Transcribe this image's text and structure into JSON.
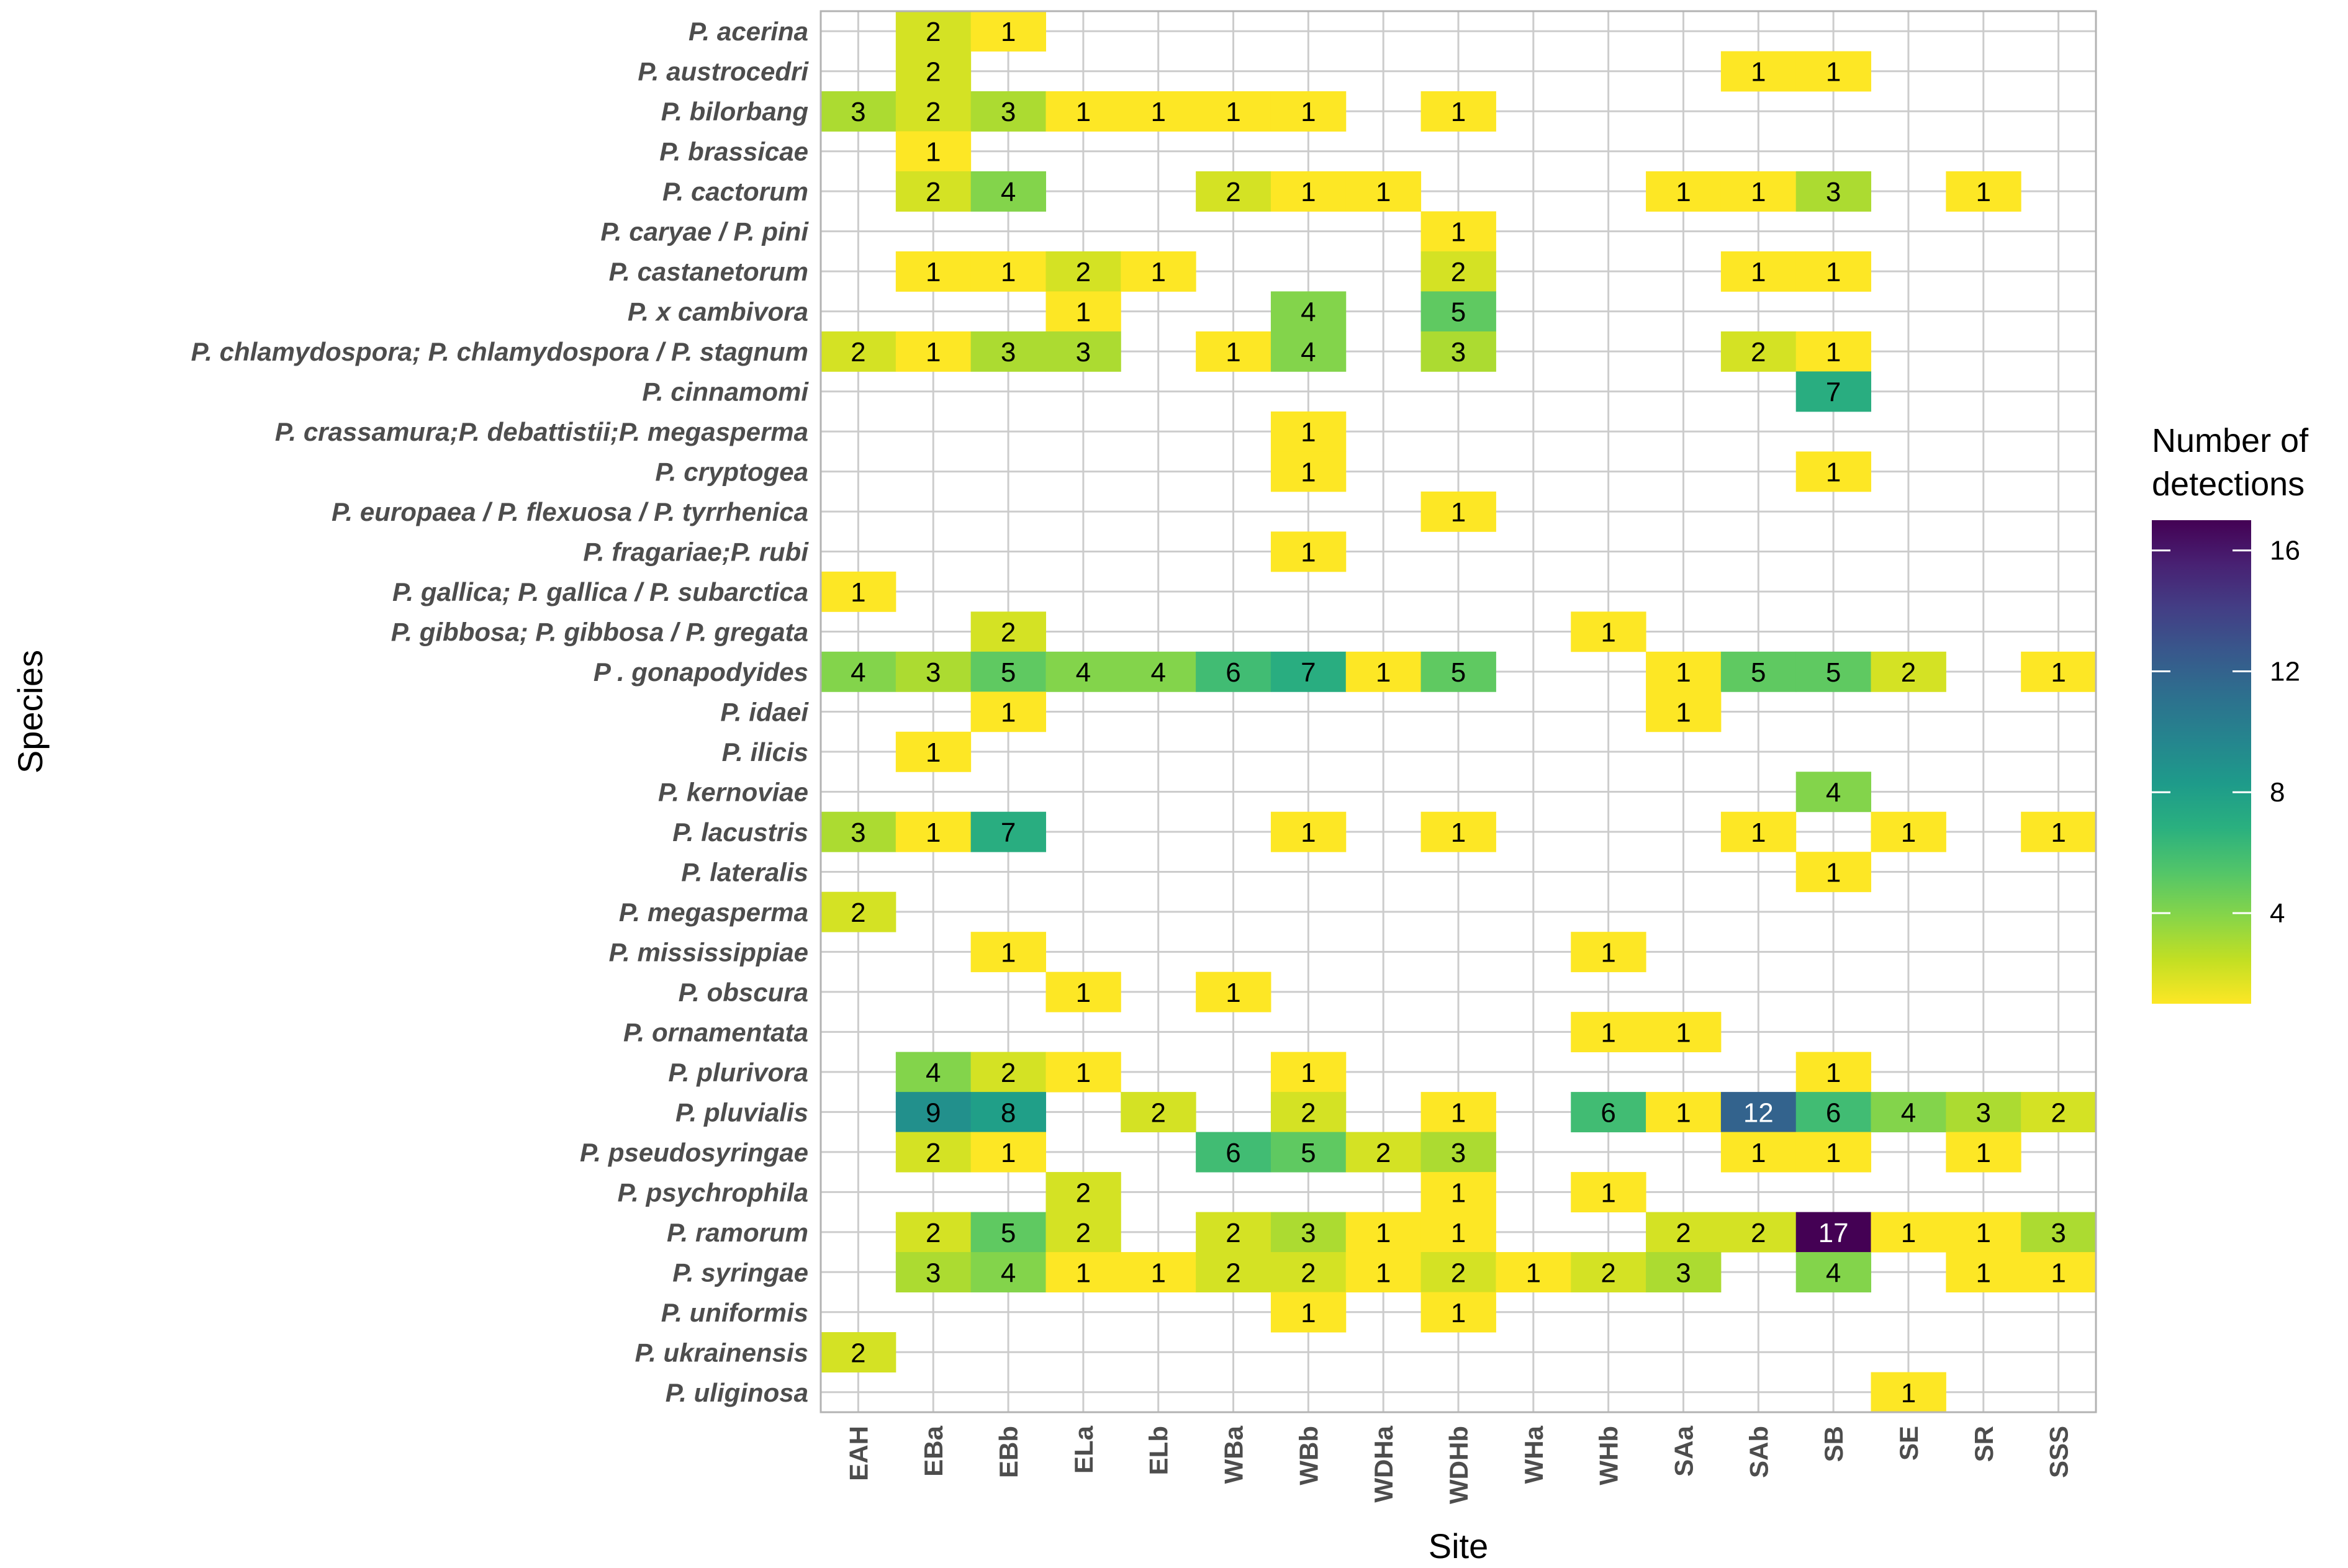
{
  "chart_data": {
    "type": "heatmap",
    "xlabel": "Site",
    "ylabel": "Species",
    "sites": [
      "EAH",
      "EBa",
      "EBb",
      "ELa",
      "ELb",
      "WBa",
      "WBb",
      "WDHa",
      "WDHb",
      "WHa",
      "WHb",
      "SAa",
      "SAb",
      "SB",
      "SE",
      "SR",
      "SSS"
    ],
    "species": [
      "P. acerina",
      "P. austrocedri",
      "P. bilorbang",
      "P. brassicae",
      "P. cactorum",
      "P. caryae / P. pini",
      "P. castanetorum",
      "P. x cambivora",
      "P. chlamydospora; P. chlamydospora / P. stagnum",
      "P. cinnamomi",
      "P. crassamura;P. debattistii;P. megasperma",
      "P. cryptogea",
      "P. europaea / P. flexuosa / P. tyrrhenica",
      "P. fragariae;P. rubi",
      "P. gallica; P. gallica / P. subarctica",
      "P. gibbosa; P. gibbosa / P. gregata",
      "P . gonapodyides",
      "P. idaei",
      "P. ilicis",
      "P. kernoviae",
      "P. lacustris",
      "P. lateralis",
      "P. megasperma",
      "P. mississippiae",
      "P. obscura",
      "P. ornamentata",
      "P. plurivora",
      "P. pluvialis",
      "P. pseudosyringae",
      "P. psychrophila",
      "P. ramorum",
      "P. syringae",
      "P. uniformis",
      "P. ukrainensis",
      "P. uliginosa"
    ],
    "cells": [
      {
        "species": "P. acerina",
        "site": "EBa",
        "value": 2
      },
      {
        "species": "P. acerina",
        "site": "EBb",
        "value": 1
      },
      {
        "species": "P. austrocedri",
        "site": "EBa",
        "value": 2
      },
      {
        "species": "P. austrocedri",
        "site": "SAb",
        "value": 1
      },
      {
        "species": "P. austrocedri",
        "site": "SB",
        "value": 1
      },
      {
        "species": "P. bilorbang",
        "site": "EAH",
        "value": 3
      },
      {
        "species": "P. bilorbang",
        "site": "EBa",
        "value": 2
      },
      {
        "species": "P. bilorbang",
        "site": "EBb",
        "value": 3
      },
      {
        "species": "P. bilorbang",
        "site": "ELa",
        "value": 1
      },
      {
        "species": "P. bilorbang",
        "site": "ELb",
        "value": 1
      },
      {
        "species": "P. bilorbang",
        "site": "WBa",
        "value": 1
      },
      {
        "species": "P. bilorbang",
        "site": "WBb",
        "value": 1
      },
      {
        "species": "P. bilorbang",
        "site": "WDHb",
        "value": 1
      },
      {
        "species": "P. brassicae",
        "site": "EBa",
        "value": 1
      },
      {
        "species": "P. cactorum",
        "site": "EBa",
        "value": 2
      },
      {
        "species": "P. cactorum",
        "site": "EBb",
        "value": 4
      },
      {
        "species": "P. cactorum",
        "site": "WBa",
        "value": 2
      },
      {
        "species": "P. cactorum",
        "site": "WBb",
        "value": 1
      },
      {
        "species": "P. cactorum",
        "site": "WDHa",
        "value": 1
      },
      {
        "species": "P. cactorum",
        "site": "SAa",
        "value": 1
      },
      {
        "species": "P. cactorum",
        "site": "SAb",
        "value": 1
      },
      {
        "species": "P. cactorum",
        "site": "SB",
        "value": 3
      },
      {
        "species": "P. cactorum",
        "site": "SR",
        "value": 1
      },
      {
        "species": "P. caryae / P. pini",
        "site": "WDHb",
        "value": 1
      },
      {
        "species": "P. castanetorum",
        "site": "EBa",
        "value": 1
      },
      {
        "species": "P. castanetorum",
        "site": "EBb",
        "value": 1
      },
      {
        "species": "P. castanetorum",
        "site": "ELa",
        "value": 2
      },
      {
        "species": "P. castanetorum",
        "site": "ELb",
        "value": 1
      },
      {
        "species": "P. castanetorum",
        "site": "WDHb",
        "value": 2
      },
      {
        "species": "P. castanetorum",
        "site": "SAb",
        "value": 1
      },
      {
        "species": "P. castanetorum",
        "site": "SB",
        "value": 1
      },
      {
        "species": "P. x cambivora",
        "site": "ELa",
        "value": 1
      },
      {
        "species": "P. x cambivora",
        "site": "WBb",
        "value": 4
      },
      {
        "species": "P. x cambivora",
        "site": "WDHb",
        "value": 5
      },
      {
        "species": "P. chlamydospora; P. chlamydospora / P. stagnum",
        "site": "EAH",
        "value": 2
      },
      {
        "species": "P. chlamydospora; P. chlamydospora / P. stagnum",
        "site": "EBa",
        "value": 1
      },
      {
        "species": "P. chlamydospora; P. chlamydospora / P. stagnum",
        "site": "EBb",
        "value": 3
      },
      {
        "species": "P. chlamydospora; P. chlamydospora / P. stagnum",
        "site": "ELa",
        "value": 3
      },
      {
        "species": "P. chlamydospora; P. chlamydospora / P. stagnum",
        "site": "WBa",
        "value": 1
      },
      {
        "species": "P. chlamydospora; P. chlamydospora / P. stagnum",
        "site": "WBb",
        "value": 4
      },
      {
        "species": "P. chlamydospora; P. chlamydospora / P. stagnum",
        "site": "WDHb",
        "value": 3
      },
      {
        "species": "P. chlamydospora; P. chlamydospora / P. stagnum",
        "site": "SAb",
        "value": 2
      },
      {
        "species": "P. chlamydospora; P. chlamydospora / P. stagnum",
        "site": "SB",
        "value": 1
      },
      {
        "species": "P. cinnamomi",
        "site": "SB",
        "value": 7
      },
      {
        "species": "P. crassamura;P. debattistii;P. megasperma",
        "site": "WBb",
        "value": 1
      },
      {
        "species": "P. cryptogea",
        "site": "WBb",
        "value": 1
      },
      {
        "species": "P. cryptogea",
        "site": "SB",
        "value": 1
      },
      {
        "species": "P. europaea / P. flexuosa / P. tyrrhenica",
        "site": "WDHb",
        "value": 1
      },
      {
        "species": "P. fragariae;P. rubi",
        "site": "WBb",
        "value": 1
      },
      {
        "species": "P. gallica; P. gallica / P. subarctica",
        "site": "EAH",
        "value": 1
      },
      {
        "species": "P. gibbosa; P. gibbosa / P. gregata",
        "site": "EBb",
        "value": 2
      },
      {
        "species": "P. gibbosa; P. gibbosa / P. gregata",
        "site": "WHb",
        "value": 1
      },
      {
        "species": "P . gonapodyides",
        "site": "EAH",
        "value": 4
      },
      {
        "species": "P . gonapodyides",
        "site": "EBa",
        "value": 3
      },
      {
        "species": "P . gonapodyides",
        "site": "EBb",
        "value": 5
      },
      {
        "species": "P . gonapodyides",
        "site": "ELa",
        "value": 4
      },
      {
        "species": "P . gonapodyides",
        "site": "ELb",
        "value": 4
      },
      {
        "species": "P . gonapodyides",
        "site": "WBa",
        "value": 6
      },
      {
        "species": "P . gonapodyides",
        "site": "WBb",
        "value": 7
      },
      {
        "species": "P . gonapodyides",
        "site": "WDHa",
        "value": 1
      },
      {
        "species": "P . gonapodyides",
        "site": "WDHb",
        "value": 5
      },
      {
        "species": "P . gonapodyides",
        "site": "SAa",
        "value": 1
      },
      {
        "species": "P . gonapodyides",
        "site": "SAb",
        "value": 5
      },
      {
        "species": "P . gonapodyides",
        "site": "SB",
        "value": 5
      },
      {
        "species": "P . gonapodyides",
        "site": "SE",
        "value": 2
      },
      {
        "species": "P . gonapodyides",
        "site": "SSS",
        "value": 1
      },
      {
        "species": "P. idaei",
        "site": "EBb",
        "value": 1
      },
      {
        "species": "P. idaei",
        "site": "SAa",
        "value": 1
      },
      {
        "species": "P. ilicis",
        "site": "EBa",
        "value": 1
      },
      {
        "species": "P. kernoviae",
        "site": "SB",
        "value": 4
      },
      {
        "species": "P. lacustris",
        "site": "EAH",
        "value": 3
      },
      {
        "species": "P. lacustris",
        "site": "EBa",
        "value": 1
      },
      {
        "species": "P. lacustris",
        "site": "EBb",
        "value": 7
      },
      {
        "species": "P. lacustris",
        "site": "WBb",
        "value": 1
      },
      {
        "species": "P. lacustris",
        "site": "WDHb",
        "value": 1
      },
      {
        "species": "P. lacustris",
        "site": "SAb",
        "value": 1
      },
      {
        "species": "P. lacustris",
        "site": "SE",
        "value": 1
      },
      {
        "species": "P. lacustris",
        "site": "SSS",
        "value": 1
      },
      {
        "species": "P. lateralis",
        "site": "SB",
        "value": 1
      },
      {
        "species": "P. megasperma",
        "site": "EAH",
        "value": 2
      },
      {
        "species": "P. mississippiae",
        "site": "EBb",
        "value": 1
      },
      {
        "species": "P. mississippiae",
        "site": "WHb",
        "value": 1
      },
      {
        "species": "P. obscura",
        "site": "ELa",
        "value": 1
      },
      {
        "species": "P. obscura",
        "site": "WBa",
        "value": 1
      },
      {
        "species": "P. ornamentata",
        "site": "WHb",
        "value": 1
      },
      {
        "species": "P. ornamentata",
        "site": "SAa",
        "value": 1
      },
      {
        "species": "P. plurivora",
        "site": "EBa",
        "value": 4
      },
      {
        "species": "P. plurivora",
        "site": "EBb",
        "value": 2
      },
      {
        "species": "P. plurivora",
        "site": "ELa",
        "value": 1
      },
      {
        "species": "P. plurivora",
        "site": "WBb",
        "value": 1
      },
      {
        "species": "P. plurivora",
        "site": "SB",
        "value": 1
      },
      {
        "species": "P. pluvialis",
        "site": "EBa",
        "value": 9
      },
      {
        "species": "P. pluvialis",
        "site": "EBb",
        "value": 8
      },
      {
        "species": "P. pluvialis",
        "site": "ELb",
        "value": 2
      },
      {
        "species": "P. pluvialis",
        "site": "WBb",
        "value": 2
      },
      {
        "species": "P. pluvialis",
        "site": "WDHb",
        "value": 1
      },
      {
        "species": "P. pluvialis",
        "site": "WHb",
        "value": 6
      },
      {
        "species": "P. pluvialis",
        "site": "SAa",
        "value": 1
      },
      {
        "species": "P. pluvialis",
        "site": "SAb",
        "value": 12
      },
      {
        "species": "P. pluvialis",
        "site": "SB",
        "value": 6
      },
      {
        "species": "P. pluvialis",
        "site": "SE",
        "value": 4
      },
      {
        "species": "P. pluvialis",
        "site": "SR",
        "value": 3
      },
      {
        "species": "P. pluvialis",
        "site": "SSS",
        "value": 2
      },
      {
        "species": "P. pseudosyringae",
        "site": "EBa",
        "value": 2
      },
      {
        "species": "P. pseudosyringae",
        "site": "EBb",
        "value": 1
      },
      {
        "species": "P. pseudosyringae",
        "site": "WBa",
        "value": 6
      },
      {
        "species": "P. pseudosyringae",
        "site": "WBb",
        "value": 5
      },
      {
        "species": "P. pseudosyringae",
        "site": "WDHa",
        "value": 2
      },
      {
        "species": "P. pseudosyringae",
        "site": "WDHb",
        "value": 3
      },
      {
        "species": "P. pseudosyringae",
        "site": "SAb",
        "value": 1
      },
      {
        "species": "P. pseudosyringae",
        "site": "SB",
        "value": 1
      },
      {
        "species": "P. pseudosyringae",
        "site": "SR",
        "value": 1
      },
      {
        "species": "P. psychrophila",
        "site": "ELa",
        "value": 2
      },
      {
        "species": "P. psychrophila",
        "site": "WDHb",
        "value": 1
      },
      {
        "species": "P. psychrophila",
        "site": "WHb",
        "value": 1
      },
      {
        "species": "P. ramorum",
        "site": "EBa",
        "value": 2
      },
      {
        "species": "P. ramorum",
        "site": "EBb",
        "value": 5
      },
      {
        "species": "P. ramorum",
        "site": "ELa",
        "value": 2
      },
      {
        "species": "P. ramorum",
        "site": "WBa",
        "value": 2
      },
      {
        "species": "P. ramorum",
        "site": "WBb",
        "value": 3
      },
      {
        "species": "P. ramorum",
        "site": "WDHa",
        "value": 1
      },
      {
        "species": "P. ramorum",
        "site": "WDHb",
        "value": 1
      },
      {
        "species": "P. ramorum",
        "site": "SAa",
        "value": 2
      },
      {
        "species": "P. ramorum",
        "site": "SAb",
        "value": 2
      },
      {
        "species": "P. ramorum",
        "site": "SB",
        "value": 17
      },
      {
        "species": "P. ramorum",
        "site": "SE",
        "value": 1
      },
      {
        "species": "P. ramorum",
        "site": "SR",
        "value": 1
      },
      {
        "species": "P. ramorum",
        "site": "SSS",
        "value": 3
      },
      {
        "species": "P. syringae",
        "site": "EBa",
        "value": 3
      },
      {
        "species": "P. syringae",
        "site": "EBb",
        "value": 4
      },
      {
        "species": "P. syringae",
        "site": "ELa",
        "value": 1
      },
      {
        "species": "P. syringae",
        "site": "ELb",
        "value": 1
      },
      {
        "species": "P. syringae",
        "site": "WBa",
        "value": 2
      },
      {
        "species": "P. syringae",
        "site": "WBb",
        "value": 2
      },
      {
        "species": "P. syringae",
        "site": "WDHa",
        "value": 1
      },
      {
        "species": "P. syringae",
        "site": "WDHb",
        "value": 2
      },
      {
        "species": "P. syringae",
        "site": "WHa",
        "value": 1
      },
      {
        "species": "P. syringae",
        "site": "WHb",
        "value": 2
      },
      {
        "species": "P. syringae",
        "site": "SAa",
        "value": 3
      },
      {
        "species": "P. syringae",
        "site": "SB",
        "value": 4
      },
      {
        "species": "P. syringae",
        "site": "SR",
        "value": 1
      },
      {
        "species": "P. syringae",
        "site": "SSS",
        "value": 1
      },
      {
        "species": "P. uniformis",
        "site": "WBb",
        "value": 1
      },
      {
        "species": "P. uniformis",
        "site": "WDHb",
        "value": 1
      },
      {
        "species": "P. ukrainensis",
        "site": "EAH",
        "value": 2
      },
      {
        "species": "P. uliginosa",
        "site": "SE",
        "value": 1
      }
    ],
    "legend": {
      "title_line1": "Number of",
      "title_line2": "detections",
      "ticks": [
        4,
        8,
        12,
        16
      ],
      "range": [
        1,
        17
      ],
      "placement": "right"
    },
    "colors": {
      "scale": [
        "#FDE725",
        "#C2DF23",
        "#86D549",
        "#52C569",
        "#2AB07F",
        "#1E9B8A",
        "#25858E",
        "#2D708E",
        "#38588C",
        "#433E85",
        "#482173",
        "#440154"
      ],
      "grid": "#cccccc",
      "panel_border": "#b3b3b3"
    }
  }
}
